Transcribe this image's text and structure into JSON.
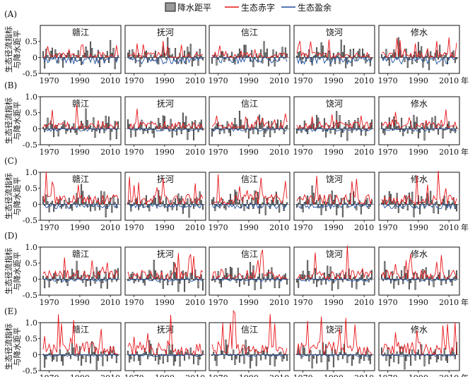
{
  "legend": {
    "items": [
      {
        "label": "降水距平",
        "kind": "bar",
        "color": "#9a9a9a"
      },
      {
        "label": "生态赤字",
        "kind": "line",
        "color": "#e8161b"
      },
      {
        "label": "生态盈余",
        "kind": "line",
        "color": "#1f4e9c"
      }
    ]
  },
  "ylabel": "生态径流指标\n与降水距平",
  "x_unit": "年",
  "colors": {
    "bar": "#9a9a9a",
    "deficit": "#e8161b",
    "surplus": "#1f4e9c",
    "frame": "#111111"
  },
  "chart_data": {
    "type": "bar+line",
    "rows": [
      {
        "label": "(A)",
        "yticks": [
          "0.5",
          "0",
          "-0.5"
        ],
        "ylim": [
          -0.5,
          1.0
        ]
      },
      {
        "label": "(B)",
        "yticks": [
          "1.0",
          "0.5",
          "0",
          "-0.5"
        ],
        "ylim": [
          -0.5,
          1.0
        ]
      },
      {
        "label": "(C)",
        "yticks": [
          "1.0",
          "0.5",
          "0",
          "-0.5"
        ],
        "ylim": [
          -0.5,
          1.0
        ]
      },
      {
        "label": "(D)",
        "yticks": [
          "1.0",
          "0.5",
          "0",
          "-0.5"
        ],
        "ylim": [
          -0.5,
          1.0
        ]
      },
      {
        "label": "(E)",
        "yticks": [
          "1.0",
          "0.5",
          "0",
          "-0.5"
        ],
        "ylim": [
          -0.5,
          1.0
        ]
      }
    ],
    "columns": [
      "赣江",
      "抚河",
      "信江",
      "饶河",
      "修水"
    ],
    "x_ticks": [
      "1970",
      "1990",
      "2010"
    ],
    "x_range": [
      1966,
      2015
    ],
    "precip_anomaly": [
      0.2,
      -0.3,
      0.2,
      0.05,
      -0.1,
      0.15,
      0.25,
      -0.05,
      0.3,
      0.1,
      -0.2,
      0.05,
      0.1,
      -0.25,
      -0.05,
      0.05,
      0.15,
      0.2,
      -0.15,
      -0.05,
      0.1,
      -0.1,
      0.05,
      0.2,
      -0.1,
      -0.2,
      0.05,
      0.1,
      0.25,
      0.15,
      -0.05,
      0.45,
      0.3,
      0.05,
      0.1,
      -0.1,
      0.25,
      -0.25,
      -0.05,
      0.1,
      -0.15,
      0.05,
      0.2,
      -0.15,
      0.4,
      0.15,
      0.3,
      -0.3,
      -0.1,
      0.05
    ]
  }
}
